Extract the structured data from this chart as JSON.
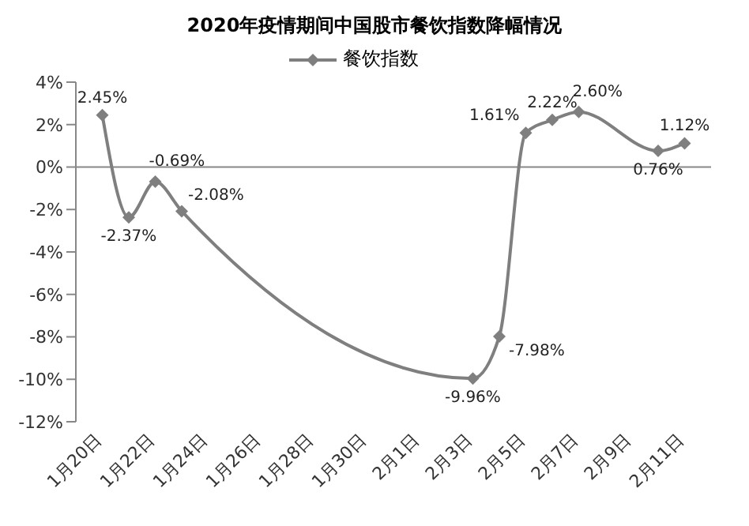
{
  "chart_data": {
    "type": "line",
    "title": "2020年疫情期间中国股市餐饮指数降幅情况",
    "x": [
      "--01-20",
      "--01-21",
      "--01-22",
      "--01-23",
      "--02-03",
      "--02-04",
      "--02-05",
      "--02-06",
      "--02-07",
      "--02-10",
      "--02-11"
    ],
    "series": [
      {
        "name": "餐饮指数",
        "color": "#7f7f7f",
        "values": [
          2.45,
          -2.37,
          -0.69,
          -2.08,
          -9.96,
          -7.98,
          1.61,
          2.22,
          2.6,
          0.76,
          1.12
        ],
        "value_labels": [
          "2.45%",
          "-2.37%",
          "-0.69%",
          "-2.08%",
          "-9.96%",
          "-7.98%",
          "1.61%",
          "2.22%",
          "2.60%",
          "0.76%",
          "1.12%"
        ]
      }
    ],
    "xlim": [
      "--01-19",
      "--02-12"
    ],
    "xticks": [
      {
        "value": "--01-20",
        "label": "1月20日"
      },
      {
        "value": "--01-22",
        "label": "1月22日"
      },
      {
        "value": "--01-24",
        "label": "1月24日"
      },
      {
        "value": "--01-26",
        "label": "1月26日"
      },
      {
        "value": "--01-28",
        "label": "1月28日"
      },
      {
        "value": "--01-30",
        "label": "1月30日"
      },
      {
        "value": "--02-01",
        "label": "2月1日"
      },
      {
        "value": "--02-03",
        "label": "2月3日"
      },
      {
        "value": "--02-05",
        "label": "2月5日"
      },
      {
        "value": "--02-07",
        "label": "2月7日"
      },
      {
        "value": "--02-09",
        "label": "2月9日"
      },
      {
        "value": "--02-11",
        "label": "2月11日"
      }
    ],
    "ylim": [
      -12,
      4
    ],
    "yticks": [
      {
        "value": -12,
        "label": "-12%"
      },
      {
        "value": -10,
        "label": "-10%"
      },
      {
        "value": -8,
        "label": "-8%"
      },
      {
        "value": -6,
        "label": "-6%"
      },
      {
        "value": -4,
        "label": "-4%"
      },
      {
        "value": -2,
        "label": "-2%"
      },
      {
        "value": 0,
        "label": "0%"
      },
      {
        "value": 2,
        "label": "2%"
      },
      {
        "value": 4,
        "label": "4%"
      }
    ],
    "legend": "top",
    "marker": "diamond",
    "line_style": "solid"
  }
}
